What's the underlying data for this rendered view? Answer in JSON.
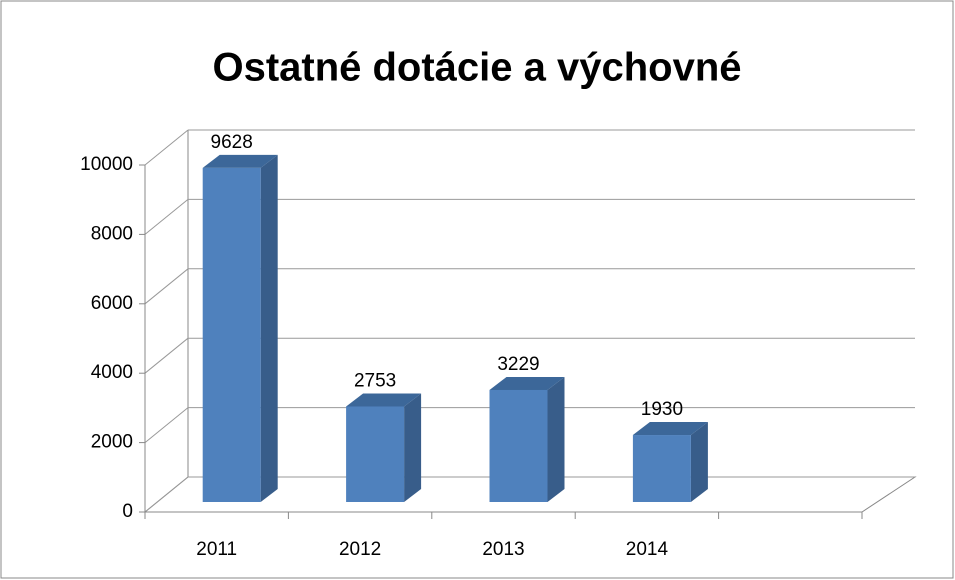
{
  "chart_data": {
    "type": "bar3d",
    "title": "Ostatné dotácie a výchovné",
    "categories": [
      "2011",
      "2012",
      "2013",
      "2014",
      null
    ],
    "values": [
      9628,
      2753,
      3229,
      1930,
      null
    ],
    "color": "#4f81bd",
    "ylim": [
      0,
      10000
    ],
    "yticks": [
      0,
      2000,
      4000,
      6000,
      8000,
      10000
    ],
    "grid": true
  }
}
